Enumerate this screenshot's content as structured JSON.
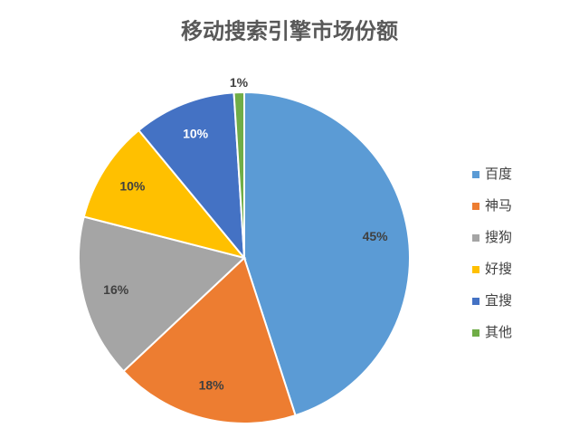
{
  "chart_data": {
    "type": "pie",
    "title": "移动搜索引擎市场份额",
    "categories": [
      "百度",
      "神马",
      "搜狗",
      "好搜",
      "宜搜",
      "其他"
    ],
    "values": [
      45,
      18,
      16,
      10,
      10,
      1
    ],
    "value_labels": [
      "45%",
      "18%",
      "16%",
      "10%",
      "10%",
      "1%"
    ],
    "colors": [
      "#5b9bd5",
      "#ed7d31",
      "#a5a5a5",
      "#ffc000",
      "#4472c4",
      "#70ad47"
    ],
    "legend": "right"
  }
}
